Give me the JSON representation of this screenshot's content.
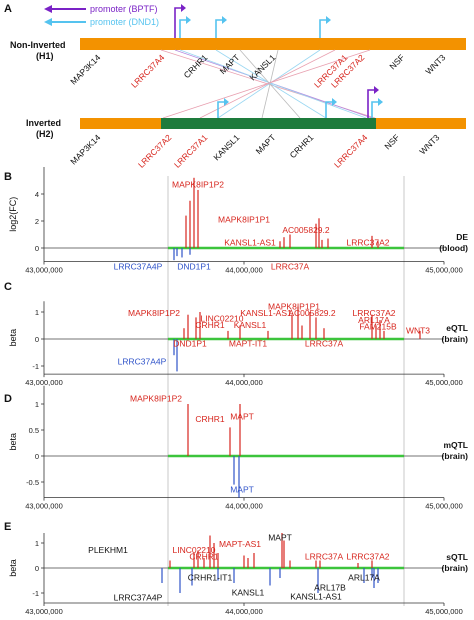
{
  "colors": {
    "inversion_orange": "#F39200",
    "inverted_green": "#1E7B3C",
    "highlight_green": "#3CC43C",
    "up_red": "#D7261E",
    "down_blue": "#2F53C9",
    "promoter_bptf": "#7A22C6",
    "promoter_dnd1": "#55C3EF",
    "pink_line": "#E8A0B0",
    "highlight_region": "#BDBDBD"
  },
  "panel_a": {
    "letter": "A",
    "legend": {
      "bptf": "promoter (BPTF)",
      "dnd1": "promoter (DND1)"
    },
    "h1": {
      "label_line1": "Non-Inverted",
      "label_line2": "(H1)",
      "genes": [
        {
          "name": "MAP3K14",
          "color": "black"
        },
        {
          "name": "LRRC37A4",
          "color": "red"
        },
        {
          "name": "CRHR1",
          "color": "black"
        },
        {
          "name": "MAPT",
          "color": "black"
        },
        {
          "name": "KANSL1",
          "color": "black"
        },
        {
          "name": "LRRC37A1",
          "color": "red"
        },
        {
          "name": "LRRC37A2",
          "color": "red"
        },
        {
          "name": "NSF",
          "color": "black"
        },
        {
          "name": "WNT3",
          "color": "black"
        }
      ]
    },
    "h2": {
      "label_line1": "Inverted",
      "label_line2": "(H2)",
      "genes": [
        {
          "name": "MAP3K14",
          "color": "black"
        },
        {
          "name": "LRRC37A2",
          "color": "red"
        },
        {
          "name": "LRRC37A1",
          "color": "red"
        },
        {
          "name": "KANSL1",
          "color": "black"
        },
        {
          "name": "MAPT",
          "color": "black"
        },
        {
          "name": "CRHR1",
          "color": "black"
        },
        {
          "name": "LRRC37A4",
          "color": "red"
        },
        {
          "name": "NSF",
          "color": "black"
        },
        {
          "name": "WNT3",
          "color": "black"
        }
      ]
    }
  },
  "chart_data": [
    {
      "type": "bar",
      "panel": "B",
      "ylabel": "log2(FC)",
      "side_label": [
        "DE",
        "(blood)"
      ],
      "ylim": [
        -1,
        6
      ],
      "yticks": [
        0,
        2,
        4
      ],
      "xlim": [
        43000000,
        45000000
      ],
      "xticks": [
        "43,000,000",
        "44,000,000",
        "45,000,000"
      ],
      "series": [
        {
          "color": "up",
          "x": [
            43710000,
            43730000,
            43750000,
            43770000,
            44180000,
            44200000,
            44230000,
            44360000,
            44375000,
            44390000,
            44420000,
            44640000,
            44670000
          ],
          "values": [
            2.4,
            3.5,
            5.2,
            4.3,
            0.5,
            0.8,
            1.0,
            1.8,
            2.2,
            0.6,
            0.7,
            0.9,
            0.5
          ]
        },
        {
          "color": "down",
          "x": [
            43650000,
            43665000,
            43690000,
            43730000
          ],
          "values": [
            -0.9,
            -0.6,
            -0.7,
            -0.5
          ]
        }
      ],
      "labels": [
        {
          "text": "MAPK8IP1P2",
          "color": "up",
          "x": 43770000,
          "y": 4.5
        },
        {
          "text": "MAPK8IP1P1",
          "color": "up",
          "x": 44000000,
          "y": 1.9
        },
        {
          "text": "AC005829.2",
          "color": "up",
          "x": 44310000,
          "y": 1.1
        },
        {
          "text": "KANSL1-AS1",
          "color": "up",
          "x": 44030000,
          "y": 0.2
        },
        {
          "text": "LRRC37A2",
          "color": "up",
          "x": 44620000,
          "y": 0.2
        },
        {
          "text": "LRRC37A",
          "color": "up",
          "x": 44230000,
          "y": -1.6
        },
        {
          "text": "LRRC37A4P",
          "color": "down",
          "x": 43470000,
          "y": -1.6
        },
        {
          "text": "DND1P1",
          "color": "down",
          "x": 43750000,
          "y": -1.6
        }
      ]
    },
    {
      "type": "bar",
      "panel": "C",
      "ylabel": "beta",
      "side_label": [
        "eQTL",
        "(brain)"
      ],
      "ylim": [
        -1.3,
        1.4
      ],
      "yticks": [
        -1,
        0,
        1
      ],
      "xlim": [
        43000000,
        45000000
      ],
      "xticks": [
        "43,000,000",
        "44,000,000",
        "45,000,000"
      ],
      "series": [
        {
          "color": "up",
          "x": [
            43700000,
            43720000,
            43760000,
            43780000,
            43920000,
            43980000,
            44120000,
            44240000,
            44270000,
            44290000,
            44330000,
            44360000,
            44400000,
            44640000,
            44660000,
            44680000,
            44700000,
            44880000
          ],
          "values": [
            0.4,
            0.9,
            0.8,
            1.0,
            0.3,
            0.5,
            0.3,
            0.9,
            1.2,
            0.5,
            1.0,
            0.8,
            0.4,
            0.9,
            0.5,
            0.7,
            0.3,
            0.3
          ]
        },
        {
          "color": "down",
          "x": [
            43650000,
            43665000
          ],
          "values": [
            -0.6,
            -1.2
          ]
        }
      ],
      "labels": [
        {
          "text": "MAPK8IP1P2",
          "color": "up",
          "x": 43550000,
          "y": 0.85
        },
        {
          "text": "LINC02210",
          "color": "up",
          "x": 43890000,
          "y": 0.65
        },
        {
          "text": "CRHR1",
          "color": "up",
          "x": 43830000,
          "y": 0.4
        },
        {
          "text": "KANSL1-AS1",
          "color": "up",
          "x": 44110000,
          "y": 0.85
        },
        {
          "text": "KANSL1",
          "color": "up",
          "x": 44030000,
          "y": 0.4
        },
        {
          "text": "MAPK8IP1P1",
          "color": "up",
          "x": 44250000,
          "y": 1.1
        },
        {
          "text": "AC005829.2",
          "color": "up",
          "x": 44340000,
          "y": 0.85
        },
        {
          "text": "LRRC37A2",
          "color": "up",
          "x": 44650000,
          "y": 0.85
        },
        {
          "text": "ARL17A",
          "color": "up",
          "x": 44650000,
          "y": 0.6
        },
        {
          "text": "FAM215B",
          "color": "up",
          "x": 44670000,
          "y": 0.35
        },
        {
          "text": "WNT3",
          "color": "up",
          "x": 44870000,
          "y": 0.2
        },
        {
          "text": "DND1P1",
          "color": "up",
          "x": 43730000,
          "y": -0.28
        },
        {
          "text": "MAPT-IT1",
          "color": "up",
          "x": 44020000,
          "y": -0.28
        },
        {
          "text": "LRRC37A",
          "color": "up",
          "x": 44400000,
          "y": -0.28
        },
        {
          "text": "LRRC37A4P",
          "color": "down",
          "x": 43490000,
          "y": -0.95
        }
      ]
    },
    {
      "type": "bar",
      "panel": "D",
      "ylabel": "beta",
      "side_label": [
        "mQTL",
        "(brain)"
      ],
      "ylim": [
        -0.8,
        1.35
      ],
      "yticks": [
        -0.5,
        0,
        0.5,
        1
      ],
      "xlim": [
        43000000,
        45000000
      ],
      "xticks": [
        "43,000,000",
        "44,000,000",
        "45,000,000"
      ],
      "series": [
        {
          "color": "up",
          "x": [
            43720000,
            43930000,
            43980000
          ],
          "values": [
            1.0,
            0.55,
            1.0
          ]
        },
        {
          "color": "down",
          "x": [
            43950000,
            43975000
          ],
          "values": [
            -0.55,
            -0.8
          ]
        }
      ],
      "labels": [
        {
          "text": "MAPK8IP1P2",
          "color": "up",
          "x": 43560000,
          "y": 1.05
        },
        {
          "text": "CRHR1",
          "color": "up",
          "x": 43830000,
          "y": 0.65
        },
        {
          "text": "MAPT",
          "color": "up",
          "x": 43990000,
          "y": 0.7
        },
        {
          "text": "MAPT",
          "color": "down",
          "x": 43990000,
          "y": -0.7
        }
      ]
    },
    {
      "type": "bar",
      "panel": "E",
      "ylabel": "beta",
      "side_label": [
        "sQTL",
        "(brain)"
      ],
      "ylim": [
        -1.4,
        1.4
      ],
      "yticks": [
        -1,
        0,
        1
      ],
      "xlim": [
        43000000,
        45000000
      ],
      "xticks": [
        "43,000,000",
        "44,000,000",
        "45,000,000"
      ],
      "series": [
        {
          "color": "up",
          "x": [
            43630000,
            43750000,
            43770000,
            43800000,
            43830000,
            43850000,
            43870000,
            44000000,
            44020000,
            44050000,
            44190000,
            44200000,
            44230000,
            44360000,
            44380000,
            44570000,
            44640000
          ],
          "values": [
            0.3,
            0.6,
            0.7,
            0.4,
            1.3,
            1.0,
            0.6,
            0.5,
            0.4,
            0.6,
            1.4,
            1.1,
            0.3,
            0.3,
            0.3,
            0.2,
            0.3
          ]
        },
        {
          "color": "down",
          "x": [
            43590000,
            43680000,
            43740000,
            43870000,
            43950000,
            44130000,
            44180000,
            44370000,
            44600000,
            44640000,
            44650000,
            44670000
          ],
          "values": [
            -0.6,
            -1.0,
            -0.7,
            -0.5,
            -0.6,
            -0.7,
            -0.4,
            -1.0,
            -0.6,
            -0.4,
            -0.8,
            -0.6
          ]
        }
      ],
      "labels": [
        {
          "text": "PLEKHM1",
          "color": "black",
          "x": 43320000,
          "y": 0.6
        },
        {
          "text": "LINC02210",
          "color": "up",
          "x": 43750000,
          "y": 0.6
        },
        {
          "text": "CRHR1",
          "color": "up",
          "x": 43800000,
          "y": 0.35
        },
        {
          "text": "MAPT-AS1",
          "color": "up",
          "x": 43980000,
          "y": 0.85
        },
        {
          "text": "MAPT",
          "color": "black",
          "x": 44180000,
          "y": 1.1
        },
        {
          "text": "LRRC37A",
          "color": "up",
          "x": 44400000,
          "y": 0.35
        },
        {
          "text": "LRRC37A2",
          "color": "up",
          "x": 44620000,
          "y": 0.35
        },
        {
          "text": "LRRC37A4P",
          "color": "black",
          "x": 43470000,
          "y": -1.3
        },
        {
          "text": "CRHR1-IT1",
          "color": "black",
          "x": 43830000,
          "y": -0.5
        },
        {
          "text": "KANSL1",
          "color": "black",
          "x": 44020000,
          "y": -1.1
        },
        {
          "text": "ARL17B",
          "color": "black",
          "x": 44430000,
          "y": -0.9
        },
        {
          "text": "KANSL1-AS1",
          "color": "black",
          "x": 44360000,
          "y": -1.25
        },
        {
          "text": "ARL17A",
          "color": "black",
          "x": 44600000,
          "y": -0.5
        }
      ]
    }
  ],
  "inversion_region": [
    43620000,
    44800000
  ]
}
